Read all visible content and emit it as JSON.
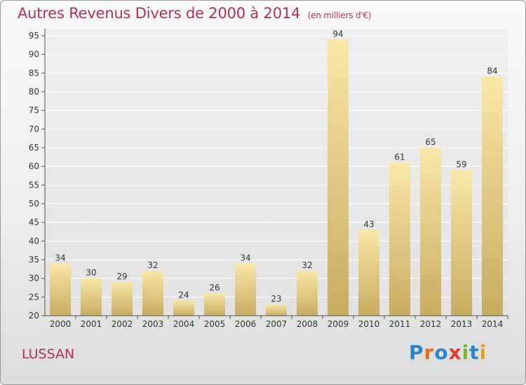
{
  "header": {
    "title": "Autres Revenus Divers de 2000 à 2014",
    "unit": "(en milliers d'€)"
  },
  "footer": {
    "place": "LUSSAN",
    "logo_letters": [
      "P",
      "r",
      "o",
      "x",
      "i",
      "t",
      "i"
    ]
  },
  "colors": {
    "title": "#b03060",
    "bar_light": "#f8e4a4",
    "bar_dark": "#c8aa5e",
    "grid": "#ffffff",
    "axis": "#555555"
  },
  "chart_data": {
    "type": "bar",
    "title": "Autres Revenus Divers de 2000 à 2014",
    "subtitle": "(en milliers d'€)",
    "categories": [
      "2000",
      "2001",
      "2002",
      "2003",
      "2004",
      "2005",
      "2006",
      "2007",
      "2008",
      "2009",
      "2010",
      "2011",
      "2012",
      "2013",
      "2014"
    ],
    "values": [
      34,
      30,
      29,
      32,
      24,
      26,
      34,
      23,
      32,
      94,
      43,
      61,
      65,
      59,
      84
    ],
    "ylim": [
      20,
      95
    ],
    "yticks": [
      20,
      25,
      30,
      35,
      40,
      45,
      50,
      55,
      60,
      65,
      70,
      75,
      80,
      85,
      90,
      95
    ],
    "grid": true,
    "data_labels": true
  }
}
